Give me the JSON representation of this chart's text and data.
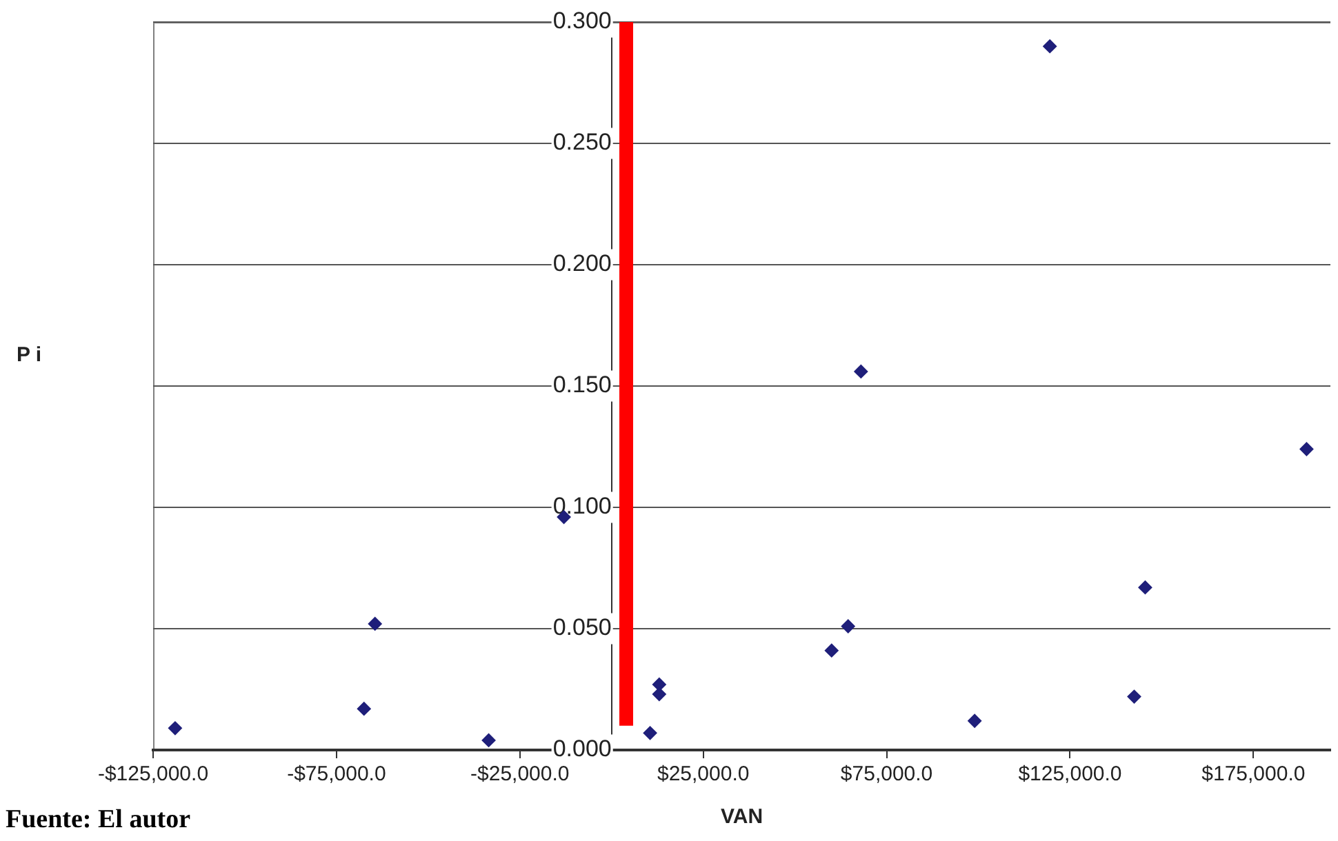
{
  "chart_data": {
    "type": "scatter",
    "xlabel": "VAN",
    "ylabel": "P i",
    "xlim": [
      -125000,
      196000
    ],
    "xticks": [
      {
        "value": -125000,
        "label": "-$125,000.0"
      },
      {
        "value": -75000,
        "label": "-$75,000.0"
      },
      {
        "value": -25000,
        "label": "-$25,000.0"
      },
      {
        "value": 25000,
        "label": "$25,000.0"
      },
      {
        "value": 75000,
        "label": "$75,000.0"
      },
      {
        "value": 125000,
        "label": "$125,000.0"
      },
      {
        "value": 175000,
        "label": "$175,000.0"
      }
    ],
    "ylim": [
      0,
      0.3
    ],
    "yticks": [
      {
        "value": 0,
        "label": "0.000"
      },
      {
        "value": 0.05,
        "label": "0.050"
      },
      {
        "value": 0.1,
        "label": "0.100"
      },
      {
        "value": 0.15,
        "label": "0.150"
      },
      {
        "value": 0.2,
        "label": "0.200"
      },
      {
        "value": 0.25,
        "label": "0.250"
      },
      {
        "value": 0.3,
        "label": "0.300"
      }
    ],
    "grid": "y",
    "legend": false,
    "marker": "diamond",
    "series": [
      {
        "type": "scatter",
        "color": "#1f1f7a",
        "x": [
          -119000,
          -67500,
          -64500,
          -33500,
          -13000,
          10500,
          13000,
          13000,
          60000,
          64500,
          68000,
          99000,
          119500,
          142500,
          145500,
          189500
        ],
        "values": [
          0.009,
          0.017,
          0.052,
          0.004,
          0.096,
          0.007,
          0.027,
          0.023,
          0.041,
          0.051,
          0.156,
          0.012,
          0.29,
          0.022,
          0.067,
          0.124
        ]
      },
      {
        "type": "line",
        "color": "#ff0000",
        "marker": "none",
        "x": [
          4000,
          4000
        ],
        "values": [
          0.01,
          0.3
        ]
      }
    ],
    "annotations": [
      "Fuente: El autor"
    ]
  }
}
